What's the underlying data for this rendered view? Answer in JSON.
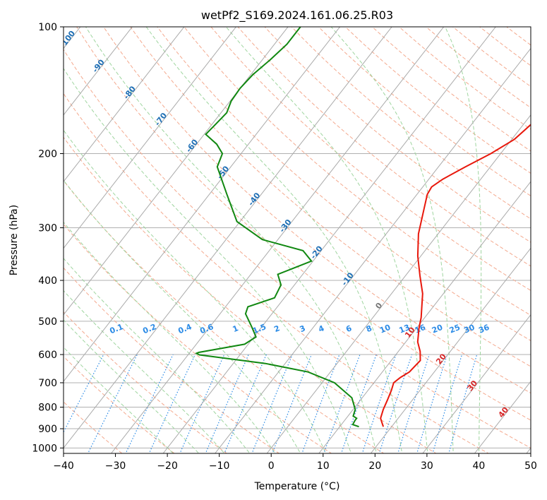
{
  "chart_data": {
    "type": "line",
    "title": "wetPf2_S169.2024.161.06.25.R03",
    "xlabel": "Temperature (°C)",
    "ylabel": "Pressure (hPa)",
    "xlim": [
      -40,
      50
    ],
    "ylim": [
      1030,
      100
    ],
    "y_scale": "log",
    "x_ticks": [
      "−40",
      "−30",
      "−20",
      "−10",
      "0",
      "10",
      "20",
      "30",
      "40",
      "50"
    ],
    "x_tick_values": [
      -40,
      -30,
      -20,
      -10,
      0,
      10,
      20,
      30,
      40,
      50
    ],
    "y_ticks": [
      "100",
      "200",
      "300",
      "400",
      "500",
      "600",
      "700",
      "800",
      "900",
      "1000"
    ],
    "y_tick_values": [
      100,
      200,
      300,
      400,
      500,
      600,
      700,
      800,
      900,
      1000
    ],
    "skew_deg_per_decade_note": "skewed isotherms",
    "colors": {
      "temperature": "#e8180c",
      "dewpoint": "#118811",
      "isotherm": "#aaaaaa",
      "dry_adiabat": "#f4a98e",
      "moist_adiabat": "#9fd59f",
      "mixing_ratio": "#2b8be6",
      "isotherm_label": "#1f6fb5",
      "moist_label": "#d62728",
      "grid": "#b0b0b0"
    },
    "isotherm_labels": [
      "-100",
      "-90",
      "-80",
      "-70",
      "-60",
      "-50",
      "-40",
      "-30",
      "-20",
      "-10",
      "0",
      "10",
      "20",
      "30",
      "40"
    ],
    "isotherm_label_values": [
      -100,
      -90,
      -80,
      -70,
      -60,
      -50,
      -40,
      -30,
      -20,
      -10,
      0,
      10,
      20,
      30,
      40
    ],
    "mixing_ratio_labels": [
      "0.1",
      "0.2",
      "0.4",
      "0.6",
      "1",
      "1.5",
      "2",
      "3",
      "4",
      "6",
      "8",
      "10",
      "13",
      "16",
      "20",
      "25",
      "30",
      "36"
    ],
    "series": [
      {
        "name": "",
        "role": "temperature",
        "points": [
          [
            18.4,
            890
          ],
          [
            17.5,
            870
          ],
          [
            16.6,
            850
          ],
          [
            15.8,
            810
          ],
          [
            15.2,
            770
          ],
          [
            14.5,
            730
          ],
          [
            13.8,
            700
          ],
          [
            14.3,
            680
          ],
          [
            15.2,
            660
          ],
          [
            15.6,
            620
          ],
          [
            14.2,
            590
          ],
          [
            12.3,
            560
          ],
          [
            10.5,
            520
          ],
          [
            9.3,
            490
          ],
          [
            7.7,
            460
          ],
          [
            6.0,
            430
          ],
          [
            2.8,
            390
          ],
          [
            -0.6,
            350
          ],
          [
            -3.8,
            310
          ],
          [
            -6.5,
            270
          ],
          [
            -8.0,
            250
          ],
          [
            -8.3,
            240
          ],
          [
            -7.3,
            230
          ],
          [
            -4.8,
            215
          ],
          [
            -1.9,
            200
          ],
          [
            0.5,
            185
          ],
          [
            1.5,
            170
          ],
          [
            1.9,
            160
          ],
          [
            2.6,
            148
          ],
          [
            4.2,
            135
          ],
          [
            5.4,
            122
          ],
          [
            6.6,
            112
          ],
          [
            7.5,
            104
          ],
          [
            8.2,
            100
          ]
        ]
      },
      {
        "name": "",
        "role": "dewpoint",
        "points": [
          [
            13.7,
            890
          ],
          [
            12.2,
            880
          ],
          [
            12.0,
            860
          ],
          [
            12.0,
            850
          ],
          [
            11.0,
            840
          ],
          [
            10.4,
            810
          ],
          [
            8.0,
            760
          ],
          [
            2.4,
            700
          ],
          [
            -4.3,
            660
          ],
          [
            -13.8,
            630
          ],
          [
            -27.8,
            601
          ],
          [
            -28.6,
            596
          ],
          [
            -28.3,
            593
          ],
          [
            -20.7,
            567
          ],
          [
            -19.6,
            545
          ],
          [
            -22.0,
            515
          ],
          [
            -25.1,
            480
          ],
          [
            -25.7,
            462
          ],
          [
            -21.9,
            440
          ],
          [
            -22.6,
            410
          ],
          [
            -24.8,
            387
          ],
          [
            -20.3,
            360
          ],
          [
            -23.5,
            340
          ],
          [
            -33.0,
            320
          ],
          [
            -40.6,
            290
          ],
          [
            -46.6,
            250
          ],
          [
            -52.6,
            215
          ],
          [
            -53.6,
            200
          ],
          [
            -56.1,
            190
          ],
          [
            -59.7,
            180
          ],
          [
            -59.3,
            170
          ],
          [
            -58.9,
            160
          ],
          [
            -59.8,
            150
          ],
          [
            -60.0,
            140
          ],
          [
            -59.6,
            130
          ],
          [
            -58.5,
            120
          ],
          [
            -57.6,
            110
          ],
          [
            -57.6,
            100
          ]
        ]
      }
    ]
  }
}
